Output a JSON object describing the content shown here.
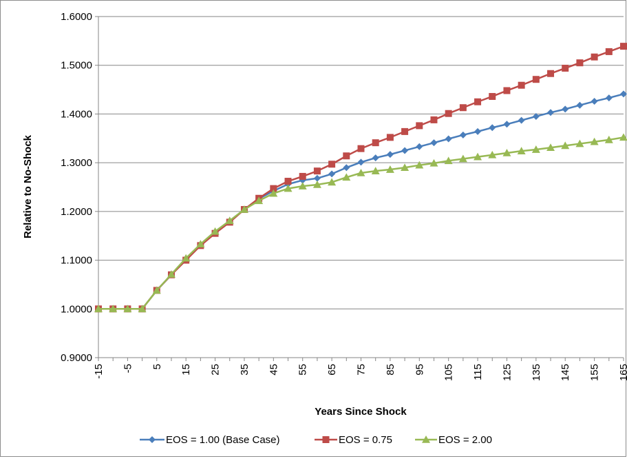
{
  "chart_data": {
    "type": "line",
    "title": "",
    "xlabel": "Years Since Shock",
    "ylabel": "Relative to No-Shock",
    "ylim": [
      0.9,
      1.6
    ],
    "yticks": [
      "0.9000",
      "1.0000",
      "1.1000",
      "1.2000",
      "1.3000",
      "1.4000",
      "1.5000",
      "1.6000"
    ],
    "xlim": [
      -15,
      165
    ],
    "xtick_labels": [
      "-15",
      "-5",
      "5",
      "15",
      "25",
      "35",
      "45",
      "55",
      "65",
      "75",
      "85",
      "95",
      "105",
      "115",
      "125",
      "135",
      "145",
      "155",
      "165"
    ],
    "x": [
      -15,
      -10,
      -5,
      0,
      5,
      10,
      15,
      20,
      25,
      30,
      35,
      40,
      45,
      50,
      55,
      60,
      65,
      70,
      75,
      80,
      85,
      90,
      95,
      100,
      105,
      110,
      115,
      120,
      125,
      130,
      135,
      140,
      145,
      150,
      155,
      160,
      165
    ],
    "grid": true,
    "legend_position": "bottom",
    "series": [
      {
        "name": "EOS = 1.00 (Base Case)",
        "color": "#4a7ebb",
        "marker": "diamond",
        "values": [
          1.0,
          1.0,
          1.0,
          1.0,
          1.038,
          1.07,
          1.102,
          1.132,
          1.157,
          1.18,
          1.204,
          1.226,
          1.242,
          1.256,
          1.264,
          1.268,
          1.277,
          1.29,
          1.301,
          1.31,
          1.317,
          1.325,
          1.333,
          1.341,
          1.349,
          1.357,
          1.364,
          1.372,
          1.379,
          1.387,
          1.395,
          1.403,
          1.41,
          1.418,
          1.426,
          1.433,
          1.441
        ]
      },
      {
        "name": "EOS = 0.75",
        "color": "#be4b48",
        "marker": "square",
        "values": [
          1.0,
          1.0,
          1.0,
          1.0,
          1.038,
          1.07,
          1.1,
          1.13,
          1.155,
          1.178,
          1.204,
          1.227,
          1.247,
          1.262,
          1.272,
          1.283,
          1.297,
          1.314,
          1.329,
          1.341,
          1.352,
          1.364,
          1.376,
          1.388,
          1.401,
          1.413,
          1.425,
          1.436,
          1.448,
          1.459,
          1.471,
          1.483,
          1.494,
          1.505,
          1.517,
          1.528,
          1.539
        ]
      },
      {
        "name": "EOS = 2.00",
        "color": "#98b954",
        "marker": "triangle",
        "values": [
          1.0,
          1.0,
          1.0,
          1.0,
          1.038,
          1.071,
          1.104,
          1.133,
          1.159,
          1.181,
          1.204,
          1.222,
          1.237,
          1.247,
          1.252,
          1.255,
          1.26,
          1.27,
          1.279,
          1.283,
          1.286,
          1.29,
          1.295,
          1.299,
          1.304,
          1.308,
          1.312,
          1.316,
          1.32,
          1.324,
          1.327,
          1.331,
          1.335,
          1.339,
          1.343,
          1.347,
          1.352
        ]
      }
    ]
  }
}
